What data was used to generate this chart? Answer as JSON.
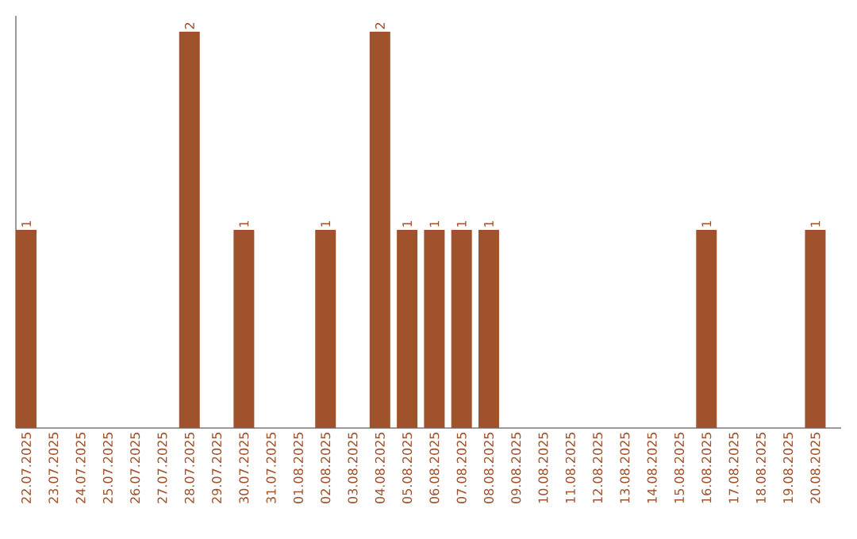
{
  "chart_data": {
    "type": "bar",
    "categories": [
      "22.07.2025",
      "23.07.2025",
      "24.07.2025",
      "25.07.2025",
      "26.07.2025",
      "27.07.2025",
      "28.07.2025",
      "29.07.2025",
      "30.07.2025",
      "31.07.2025",
      "01.08.2025",
      "02.08.2025",
      "03.08.2025",
      "04.08.2025",
      "05.08.2025",
      "06.08.2025",
      "07.08.2025",
      "08.08.2025",
      "09.08.2025",
      "10.08.2025",
      "11.08.2025",
      "12.08.2025",
      "13.08.2025",
      "14.08.2025",
      "15.08.2025",
      "16.08.2025",
      "17.08.2025",
      "18.08.2025",
      "19.08.2025",
      "20.08.2025"
    ],
    "values": [
      1,
      0,
      0,
      0,
      0,
      0,
      2,
      0,
      1,
      0,
      0,
      1,
      0,
      2,
      1,
      1,
      1,
      1,
      0,
      0,
      0,
      0,
      0,
      0,
      0,
      1,
      0,
      0,
      0,
      1
    ],
    "value_labels": [
      "1",
      null,
      null,
      null,
      null,
      null,
      "2",
      null,
      "1",
      null,
      null,
      "1",
      null,
      "2",
      "1",
      "1",
      "1",
      "1",
      null,
      null,
      null,
      null,
      null,
      null,
      null,
      "1",
      null,
      null,
      null,
      "1"
    ],
    "color": "#a0522d",
    "ylim": [
      0,
      2.08
    ]
  }
}
